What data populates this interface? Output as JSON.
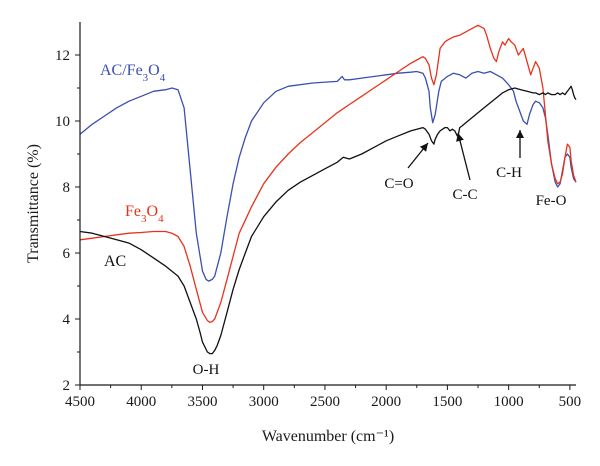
{
  "chart_data": {
    "type": "line",
    "xlabel": "Wavenumber (cm⁻¹)",
    "ylabel": "Transmittance (%)",
    "xlim": [
      4500,
      450
    ],
    "ylim": [
      2,
      13
    ],
    "x_reversed": true,
    "x_ticks": [
      4500,
      4000,
      3500,
      3000,
      2500,
      2000,
      1500,
      1000,
      500
    ],
    "y_ticks": [
      2,
      4,
      6,
      8,
      10,
      12
    ],
    "grid": false,
    "series": [
      {
        "name": "AC/Fe₃O₄",
        "color": "#3c4fb0",
        "x": [
          4500,
          4400,
          4300,
          4200,
          4100,
          4000,
          3900,
          3800,
          3750,
          3700,
          3650,
          3600,
          3550,
          3500,
          3470,
          3450,
          3420,
          3400,
          3350,
          3300,
          3250,
          3200,
          3150,
          3100,
          3000,
          2900,
          2800,
          2600,
          2400,
          2360,
          2340,
          2300,
          2200,
          2000,
          1900,
          1800,
          1750,
          1700,
          1680,
          1650,
          1640,
          1620,
          1600,
          1570,
          1550,
          1500,
          1450,
          1400,
          1350,
          1300,
          1250,
          1200,
          1150,
          1100,
          1050,
          1000,
          960,
          940,
          900,
          880,
          850,
          830,
          800,
          780,
          750,
          720,
          700,
          680,
          650,
          620,
          600,
          580,
          560,
          540,
          520,
          500,
          490,
          470,
          450
        ],
        "values": [
          9.6,
          9.9,
          10.15,
          10.4,
          10.6,
          10.75,
          10.9,
          10.95,
          11.0,
          10.95,
          10.4,
          8.5,
          6.6,
          5.45,
          5.2,
          5.15,
          5.2,
          5.3,
          6.0,
          7.1,
          8.1,
          8.9,
          9.5,
          10.0,
          10.55,
          10.9,
          11.05,
          11.15,
          11.2,
          11.35,
          11.25,
          11.25,
          11.3,
          11.4,
          11.45,
          11.48,
          11.5,
          11.45,
          11.3,
          10.9,
          10.4,
          9.95,
          10.2,
          10.9,
          11.2,
          11.35,
          11.45,
          11.4,
          11.3,
          11.45,
          11.5,
          11.45,
          11.5,
          11.4,
          11.3,
          11.1,
          10.9,
          10.6,
          10.2,
          10.0,
          9.9,
          10.2,
          10.5,
          10.6,
          10.55,
          10.4,
          10.1,
          9.6,
          8.7,
          8.15,
          8.0,
          8.1,
          8.5,
          8.9,
          9.0,
          8.9,
          8.6,
          8.25,
          8.15
        ]
      },
      {
        "name": "Fe₃O₄",
        "color": "#e8331c",
        "x": [
          4500,
          4400,
          4300,
          4200,
          4100,
          4000,
          3900,
          3800,
          3750,
          3700,
          3650,
          3600,
          3550,
          3500,
          3460,
          3440,
          3420,
          3400,
          3350,
          3300,
          3250,
          3200,
          3100,
          3000,
          2900,
          2800,
          2700,
          2600,
          2500,
          2400,
          2300,
          2200,
          2100,
          2000,
          1900,
          1800,
          1750,
          1700,
          1680,
          1650,
          1630,
          1610,
          1590,
          1560,
          1520,
          1500,
          1450,
          1400,
          1350,
          1300,
          1250,
          1200,
          1180,
          1150,
          1120,
          1100,
          1080,
          1050,
          1030,
          1000,
          980,
          950,
          920,
          880,
          850,
          820,
          800,
          780,
          750,
          720,
          700,
          680,
          650,
          620,
          600,
          580,
          560,
          540,
          520,
          500,
          490,
          470,
          450
        ],
        "values": [
          6.4,
          6.45,
          6.5,
          6.55,
          6.6,
          6.62,
          6.65,
          6.65,
          6.6,
          6.5,
          6.2,
          5.6,
          4.9,
          4.2,
          3.95,
          3.9,
          3.92,
          4.0,
          4.5,
          5.2,
          5.9,
          6.6,
          7.4,
          8.1,
          8.6,
          9.0,
          9.35,
          9.65,
          9.95,
          10.25,
          10.5,
          10.75,
          11.0,
          11.25,
          11.5,
          11.75,
          11.85,
          11.95,
          11.9,
          11.7,
          11.3,
          11.1,
          11.4,
          12.2,
          12.4,
          12.45,
          12.55,
          12.6,
          12.7,
          12.8,
          12.9,
          12.8,
          12.6,
          12.2,
          11.9,
          11.8,
          12.1,
          12.4,
          12.3,
          12.5,
          12.4,
          12.3,
          12.0,
          12.2,
          11.8,
          11.4,
          11.6,
          11.8,
          11.6,
          11.0,
          10.2,
          9.4,
          8.7,
          8.25,
          8.1,
          8.15,
          8.4,
          8.9,
          9.3,
          9.2,
          8.8,
          8.35,
          8.15
        ]
      },
      {
        "name": "AC",
        "color": "#111111",
        "x": [
          4500,
          4400,
          4300,
          4200,
          4100,
          4000,
          3900,
          3800,
          3700,
          3650,
          3600,
          3550,
          3520,
          3500,
          3460,
          3440,
          3420,
          3400,
          3380,
          3350,
          3300,
          3250,
          3200,
          3150,
          3100,
          3000,
          2900,
          2800,
          2700,
          2600,
          2500,
          2400,
          2350,
          2300,
          2200,
          2100,
          2000,
          1900,
          1800,
          1750,
          1700,
          1680,
          1650,
          1630,
          1610,
          1600,
          1580,
          1560,
          1540,
          1520,
          1500,
          1480,
          1460,
          1440,
          1420,
          1410,
          1400,
          1380,
          1350,
          1300,
          1250,
          1200,
          1150,
          1100,
          1050,
          1000,
          950,
          900,
          850,
          800,
          780,
          750,
          720,
          700,
          680,
          650,
          620,
          600,
          580,
          560,
          540,
          520,
          500,
          490,
          480,
          470,
          460,
          450
        ],
        "values": [
          6.65,
          6.6,
          6.5,
          6.4,
          6.3,
          6.1,
          5.85,
          5.6,
          5.3,
          5.0,
          4.5,
          4.0,
          3.6,
          3.3,
          3.0,
          2.95,
          2.95,
          3.05,
          3.2,
          3.5,
          4.2,
          4.9,
          5.5,
          6.0,
          6.5,
          7.1,
          7.55,
          7.9,
          8.15,
          8.35,
          8.55,
          8.75,
          8.9,
          8.85,
          9.0,
          9.2,
          9.4,
          9.55,
          9.7,
          9.75,
          9.8,
          9.75,
          9.6,
          9.4,
          9.3,
          9.45,
          9.6,
          9.7,
          9.75,
          9.8,
          9.8,
          9.7,
          9.75,
          9.7,
          9.55,
          9.6,
          9.8,
          9.85,
          9.95,
          10.1,
          10.25,
          10.4,
          10.55,
          10.7,
          10.85,
          10.95,
          11.0,
          10.95,
          10.9,
          10.85,
          10.85,
          10.8,
          10.85,
          10.8,
          10.85,
          10.8,
          10.8,
          10.85,
          10.8,
          10.85,
          10.8,
          10.9,
          11.0,
          11.05,
          10.95,
          10.8,
          10.7,
          10.65
        ]
      }
    ],
    "series_labels": [
      {
        "text": "AC/Fe",
        "sub": "3",
        "text2": "O",
        "sub2": "4",
        "series": 0
      },
      {
        "text": "Fe",
        "sub": "3",
        "text2": "O",
        "sub2": "4",
        "series": 1
      },
      {
        "text": "AC",
        "series": 2
      }
    ],
    "annotations": [
      {
        "label": "O-H",
        "wavenumber": 3450,
        "arrow": false
      },
      {
        "label": "C=O",
        "wavenumber": 1630,
        "arrow": true
      },
      {
        "label": "C-C",
        "wavenumber": 1400,
        "arrow": true
      },
      {
        "label": "C-H",
        "wavenumber": 880,
        "arrow": true
      },
      {
        "label": "Fe-O",
        "wavenumber": 560,
        "arrow": false
      }
    ]
  }
}
